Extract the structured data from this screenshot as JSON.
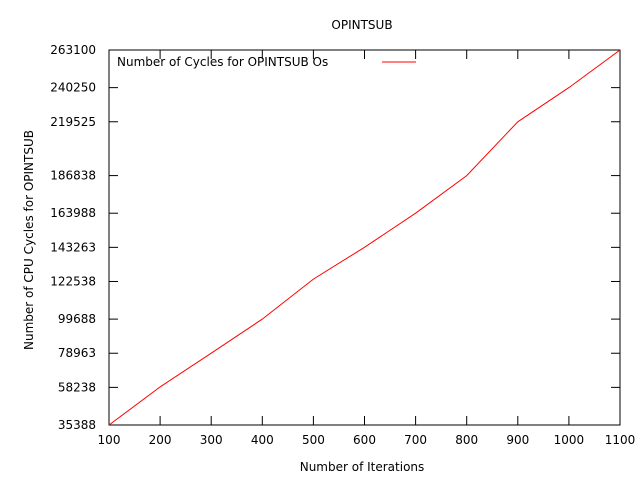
{
  "chart_data": {
    "type": "line",
    "title": "OPINTSUB",
    "xlabel": "Number of Iterations",
    "ylabel": "Number of CPU Cycles for OPINTSUB",
    "xlim": [
      100,
      1100
    ],
    "ylim": [
      35388,
      263100
    ],
    "x_ticks": [
      "100",
      "200",
      "300",
      "400",
      "500",
      "600",
      "700",
      "800",
      "900",
      "1000",
      "1100"
    ],
    "y_ticks": [
      "35388",
      "58238",
      "78963",
      "99688",
      "122538",
      "143263",
      "163988",
      "186838",
      "219525",
      "240250",
      "263100"
    ],
    "grid": false,
    "legend_position": "top-left",
    "series": [
      {
        "name": "Number of Cycles for OPINTSUB Os",
        "color": "#ff0000",
        "x": [
          100,
          200,
          300,
          400,
          500,
          600,
          700,
          800,
          900,
          1000,
          1100
        ],
        "y": [
          35388,
          58500,
          78963,
          99688,
          124000,
          143263,
          163988,
          186838,
          219525,
          240250,
          263100
        ]
      }
    ]
  }
}
